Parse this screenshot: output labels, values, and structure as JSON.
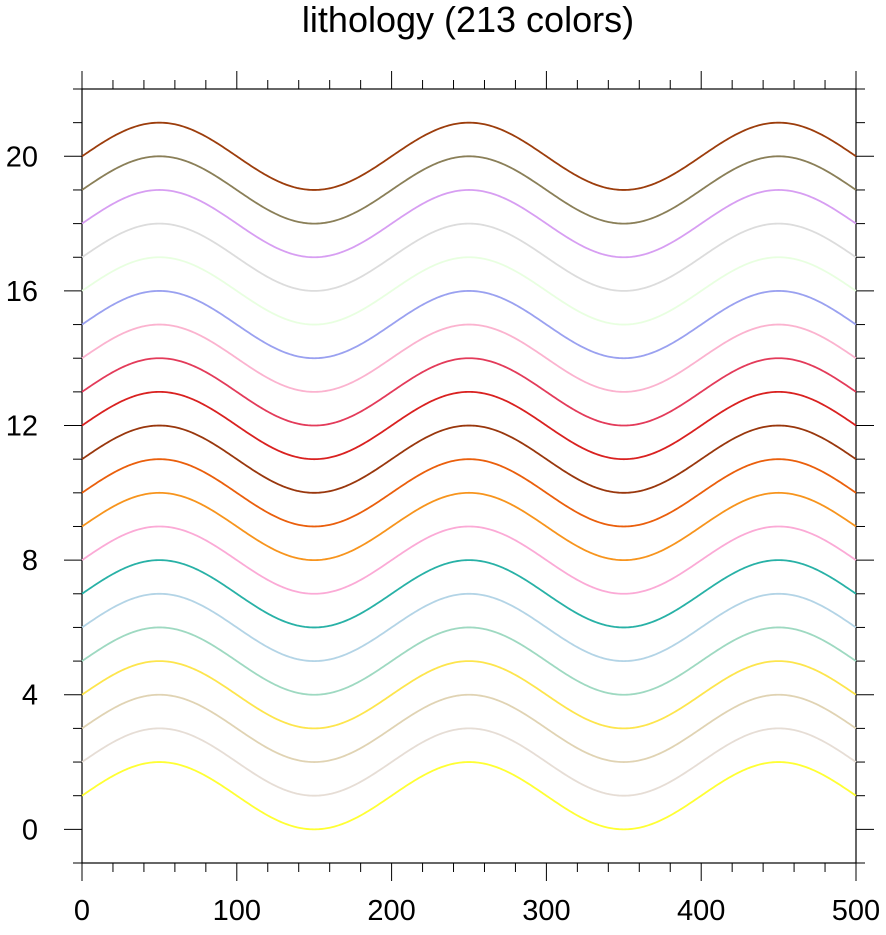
{
  "chart_data": {
    "type": "line",
    "title": "lithology (213 colors)",
    "xlabel": "",
    "ylabel": "",
    "xlim": [
      0,
      500
    ],
    "ylim": [
      -1,
      22
    ],
    "x_ticks": [
      0,
      100,
      200,
      300,
      400,
      500
    ],
    "y_ticks": [
      0,
      4,
      8,
      12,
      16,
      20
    ],
    "x_tick_labels": [
      "0",
      "100",
      "200",
      "300",
      "400",
      "500"
    ],
    "y_tick_labels": [
      "0",
      "4",
      "8",
      "12",
      "16",
      "20"
    ],
    "grid": false,
    "legend": "none",
    "series_function": "y = offset + sin(2*pi*(x - 0)/200), peaks at x = 50, 250, 450; troughs at x = 150, 350",
    "amplitude": 1,
    "period": 200,
    "x_step": 5,
    "series": [
      {
        "offset": 1,
        "color": "#ffff33"
      },
      {
        "offset": 2,
        "color": "#e6ddd5"
      },
      {
        "offset": 3,
        "color": "#e0d3b3"
      },
      {
        "offset": 4,
        "color": "#fde54d"
      },
      {
        "offset": 5,
        "color": "#9ed9c1"
      },
      {
        "offset": 6,
        "color": "#b3d4e6"
      },
      {
        "offset": 7,
        "color": "#28b1a6"
      },
      {
        "offset": 8,
        "color": "#fbaad6"
      },
      {
        "offset": 9,
        "color": "#f7941d"
      },
      {
        "offset": 10,
        "color": "#ea5f0c"
      },
      {
        "offset": 11,
        "color": "#99370d"
      },
      {
        "offset": 12,
        "color": "#d92120"
      },
      {
        "offset": 13,
        "color": "#e33b5a"
      },
      {
        "offset": 14,
        "color": "#fbb3cf"
      },
      {
        "offset": 15,
        "color": "#9aa1f0"
      },
      {
        "offset": 16,
        "color": "#e8ffe0"
      },
      {
        "offset": 17,
        "color": "#dcdcdc"
      },
      {
        "offset": 18,
        "color": "#d79ef2"
      },
      {
        "offset": 19,
        "color": "#8a7f58"
      },
      {
        "offset": 20,
        "color": "#9c3d0c"
      }
    ]
  }
}
